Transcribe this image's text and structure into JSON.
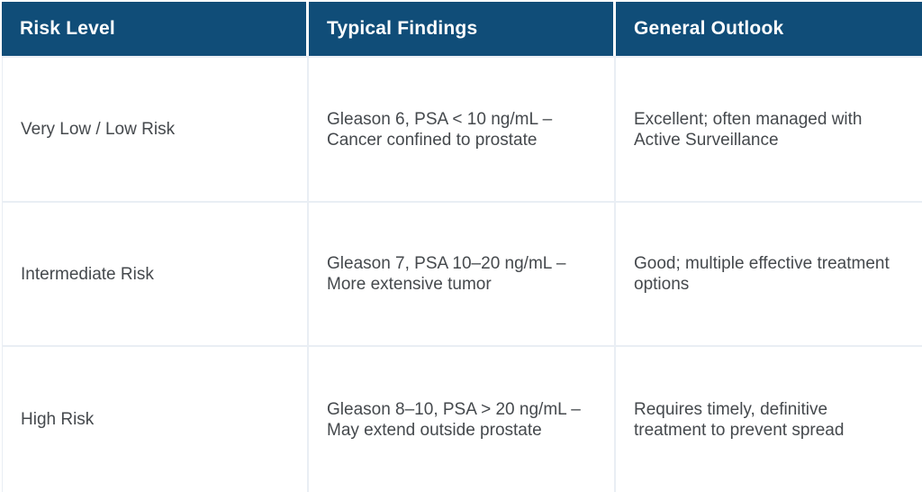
{
  "colors": {
    "header_bg": "#104d78",
    "header_text": "#ffffff",
    "body_text": "#45494d",
    "grid_border": "#e9eef4"
  },
  "table": {
    "headers": [
      "Risk Level",
      "Typical Findings",
      "General Outlook"
    ],
    "rows": [
      {
        "risk_level": "Very Low / Low Risk",
        "typical_findings": "Gleason 6, PSA < 10 ng/mL –\nCancer confined to prostate",
        "general_outlook": "Excellent; often managed with\nActive Surveillance"
      },
      {
        "risk_level": "Intermediate Risk",
        "typical_findings": "Gleason 7, PSA 10–20 ng/mL –\nMore extensive tumor",
        "general_outlook": "Good; multiple effective treatment\noptions"
      },
      {
        "risk_level": "High Risk",
        "typical_findings": "Gleason 8–10, PSA > 20 ng/mL –\nMay extend outside prostate",
        "general_outlook": "Requires timely, definitive\ntreatment to prevent spread"
      }
    ]
  }
}
